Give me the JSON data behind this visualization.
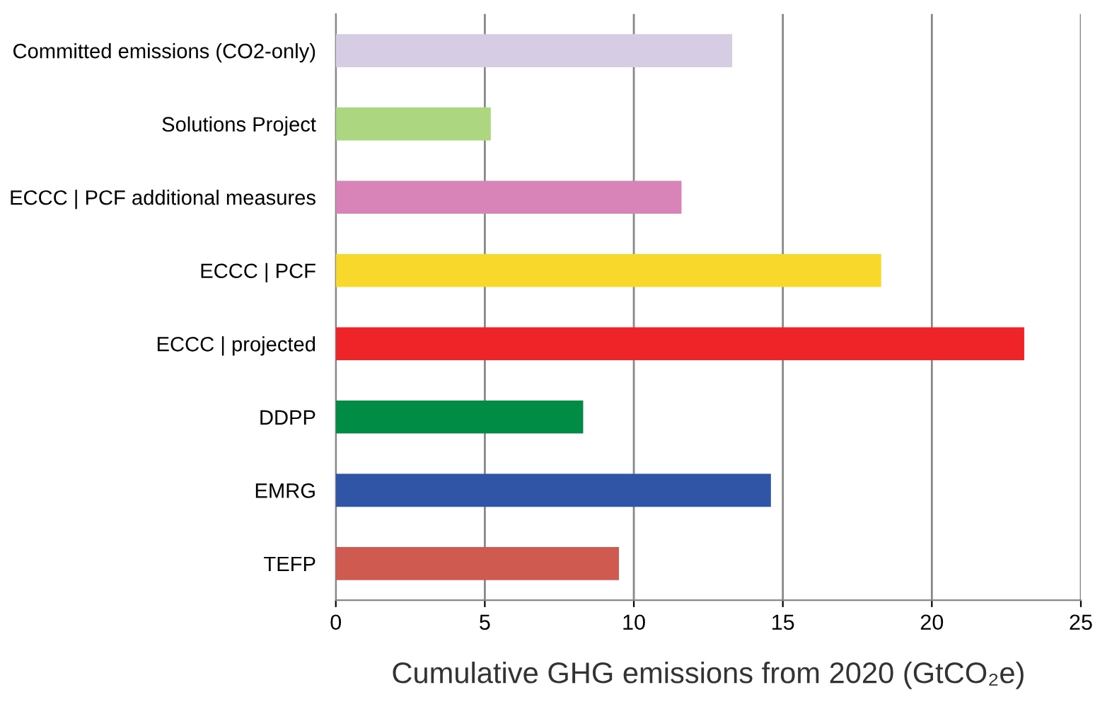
{
  "chart_data": {
    "type": "bar",
    "orientation": "horizontal",
    "categories": [
      "Committed emissions (CO2-only)",
      "Solutions Project",
      "ECCC | PCF additional measures",
      "ECCC | PCF",
      "ECCC | projected",
      "DDPP",
      "EMRG",
      "TEFP"
    ],
    "values": [
      13.3,
      5.2,
      11.6,
      18.3,
      23.1,
      8.3,
      14.6,
      9.5
    ],
    "colors": [
      "#d6cce3",
      "#acd67f",
      "#d984b8",
      "#f8d82a",
      "#ee2428",
      "#018c45",
      "#3155a6",
      "#cf5a50"
    ],
    "xlabel": "Cumulative GHG emissions from 2020 (GtCO₂e)",
    "xlim": [
      0,
      25
    ],
    "xticks": [
      0,
      5,
      10,
      15,
      20,
      25
    ],
    "grid": "x"
  }
}
